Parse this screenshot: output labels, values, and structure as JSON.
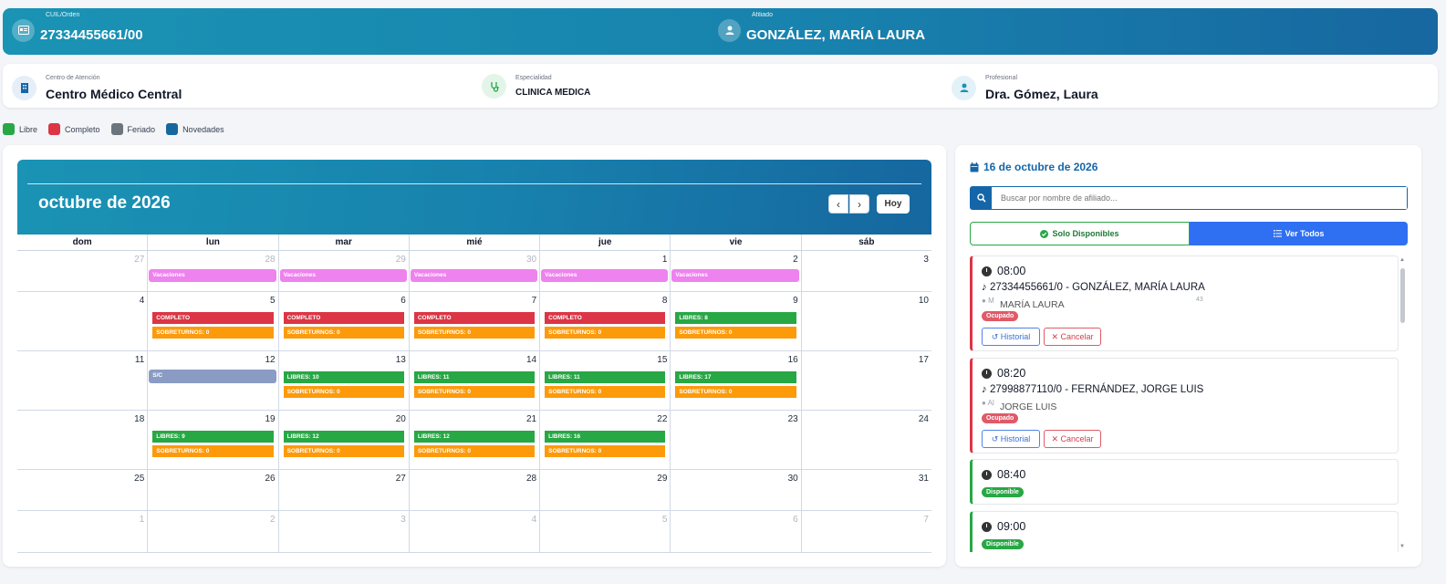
{
  "banner": {
    "cuil_label": "CUIL/Orden",
    "cuil_value": "27334455661/00",
    "afiliado_label": "Afiliado",
    "afiliado_value": "GONZÁLEZ, MARÍA LAURA"
  },
  "info": {
    "centro_label": "Centro de Atención",
    "centro_value": "Centro Médico Central",
    "especialidad_label": "Especialidad",
    "especialidad_value": "CLINICA MEDICA",
    "profesional_label": "Profesional",
    "profesional_value": "Dra. Gómez, Laura"
  },
  "legend": [
    {
      "label": "Libre",
      "color": "#28a745"
    },
    {
      "label": "Completo",
      "color": "#dc3545"
    },
    {
      "label": "Feriado",
      "color": "#6c757d"
    },
    {
      "label": "Novedades",
      "color": "#17679f"
    }
  ],
  "calendar": {
    "title": "octubre de 2026",
    "prev_icon": "chevron-left-icon",
    "next_icon": "chevron-right-icon",
    "today_label": "Hoy",
    "days_of_week": [
      "dom",
      "lun",
      "mar",
      "mié",
      "jue",
      "vie",
      "sáb"
    ],
    "weeks": [
      [
        {
          "n": "27",
          "other": true,
          "events": []
        },
        {
          "n": "28",
          "other": true,
          "events": [
            {
              "t": "Vacaciones",
              "k": "vac"
            }
          ]
        },
        {
          "n": "29",
          "other": true,
          "events": [
            {
              "t": "Vacaciones",
              "k": "vac"
            }
          ]
        },
        {
          "n": "30",
          "other": true,
          "events": [
            {
              "t": "Vacaciones",
              "k": "vac"
            }
          ]
        },
        {
          "n": "1",
          "events": [
            {
              "t": "Vacaciones",
              "k": "vac"
            }
          ]
        },
        {
          "n": "2",
          "events": [
            {
              "t": "Vacaciones",
              "k": "vac"
            }
          ]
        },
        {
          "n": "3",
          "events": []
        }
      ],
      [
        {
          "n": "4",
          "events": []
        },
        {
          "n": "5",
          "events": [
            {
              "t": "COMPLETO",
              "k": "red"
            },
            {
              "t": "SOBRETURNOS: 0",
              "k": "orange"
            }
          ]
        },
        {
          "n": "6",
          "events": [
            {
              "t": "COMPLETO",
              "k": "red"
            },
            {
              "t": "SOBRETURNOS: 0",
              "k": "orange"
            }
          ]
        },
        {
          "n": "7",
          "events": [
            {
              "t": "COMPLETO",
              "k": "red"
            },
            {
              "t": "SOBRETURNOS: 0",
              "k": "orange"
            }
          ]
        },
        {
          "n": "8",
          "events": [
            {
              "t": "COMPLETO",
              "k": "red"
            },
            {
              "t": "SOBRETURNOS: 0",
              "k": "orange"
            }
          ]
        },
        {
          "n": "9",
          "events": [
            {
              "t": "LIBRES: 8",
              "k": "green"
            },
            {
              "t": "SOBRETURNOS: 0",
              "k": "orange"
            }
          ]
        },
        {
          "n": "10",
          "events": []
        }
      ],
      [
        {
          "n": "11",
          "events": []
        },
        {
          "n": "12",
          "events": [
            {
              "t": "S/C",
              "k": "sc"
            }
          ]
        },
        {
          "n": "13",
          "events": [
            {
              "t": "LIBRES: 10",
              "k": "green"
            },
            {
              "t": "SOBRETURNOS: 0",
              "k": "orange"
            }
          ]
        },
        {
          "n": "14",
          "events": [
            {
              "t": "LIBRES: 11",
              "k": "green"
            },
            {
              "t": "SOBRETURNOS: 0",
              "k": "orange"
            }
          ]
        },
        {
          "n": "15",
          "events": [
            {
              "t": "LIBRES: 11",
              "k": "green"
            },
            {
              "t": "SOBRETURNOS: 0",
              "k": "orange"
            }
          ]
        },
        {
          "n": "16",
          "events": [
            {
              "t": "LIBRES: 17",
              "k": "green"
            },
            {
              "t": "SOBRETURNOS: 0",
              "k": "orange"
            }
          ]
        },
        {
          "n": "17",
          "events": []
        }
      ],
      [
        {
          "n": "18",
          "events": []
        },
        {
          "n": "19",
          "events": [
            {
              "t": "LIBRES: 9",
              "k": "green"
            },
            {
              "t": "SOBRETURNOS: 0",
              "k": "orange"
            }
          ]
        },
        {
          "n": "20",
          "events": [
            {
              "t": "LIBRES: 12",
              "k": "green"
            },
            {
              "t": "SOBRETURNOS: 0",
              "k": "orange"
            }
          ]
        },
        {
          "n": "21",
          "events": [
            {
              "t": "LIBRES: 12",
              "k": "green"
            },
            {
              "t": "SOBRETURNOS: 0",
              "k": "orange"
            }
          ]
        },
        {
          "n": "22",
          "events": [
            {
              "t": "LIBRES: 16",
              "k": "green"
            },
            {
              "t": "SOBRETURNOS: 0",
              "k": "orange"
            }
          ]
        },
        {
          "n": "23",
          "events": []
        },
        {
          "n": "24",
          "events": []
        }
      ],
      [
        {
          "n": "25",
          "events": []
        },
        {
          "n": "26",
          "events": []
        },
        {
          "n": "27",
          "events": []
        },
        {
          "n": "28",
          "events": []
        },
        {
          "n": "29",
          "events": []
        },
        {
          "n": "30",
          "events": []
        },
        {
          "n": "31",
          "events": []
        }
      ],
      [
        {
          "n": "1",
          "other": true,
          "events": []
        },
        {
          "n": "2",
          "other": true,
          "events": []
        },
        {
          "n": "3",
          "other": true,
          "events": []
        },
        {
          "n": "4",
          "other": true,
          "events": []
        },
        {
          "n": "5",
          "other": true,
          "events": []
        },
        {
          "n": "6",
          "other": true,
          "events": []
        },
        {
          "n": "7",
          "other": true,
          "events": []
        }
      ]
    ]
  },
  "side": {
    "date_title": "16 de octubre de 2026",
    "search_placeholder": "Buscar por nombre de afiliado...",
    "filter_available": "Solo Disponibles",
    "filter_all": "Ver Todos",
    "slots": [
      {
        "time": "08:00",
        "status": "busy",
        "patient": "27334455661/0 - GONZÁLEZ, MARÍA LAURA",
        "sub_prefix": "M",
        "sub_name": "MARÍA LAURA",
        "extra": "43",
        "badge": "Ocupado",
        "history": "Historial",
        "cancel": "Cancelar"
      },
      {
        "time": "08:20",
        "status": "busy",
        "patient": "27998877110/0 - FERNÁNDEZ, JORGE LUIS",
        "sub_prefix": "Al",
        "sub_name": "JORGE LUIS",
        "extra": "",
        "badge": "Ocupado",
        "history": "Historial",
        "cancel": "Cancelar"
      },
      {
        "time": "08:40",
        "status": "free",
        "badge": "Disponible"
      },
      {
        "time": "09:00",
        "status": "free",
        "badge": "Disponible"
      }
    ]
  }
}
